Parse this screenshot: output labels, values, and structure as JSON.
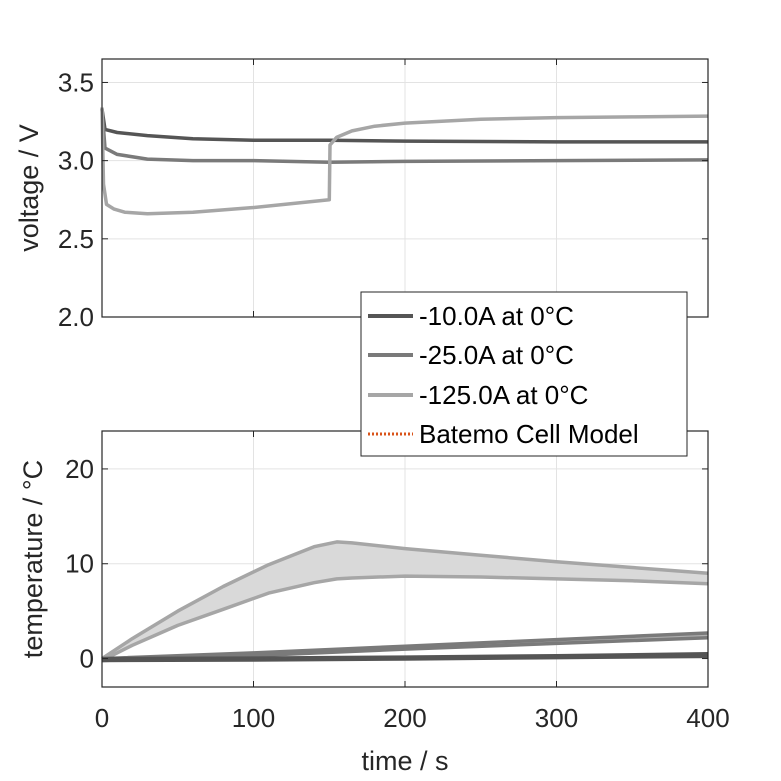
{
  "chart_data": [
    {
      "type": "line",
      "title": "",
      "xlabel": "",
      "ylabel": "voltage / V",
      "xlim": [
        0,
        400
      ],
      "ylim": [
        2.0,
        3.65
      ],
      "xticks": [
        0,
        100,
        200,
        300,
        400
      ],
      "yticks": [
        2.0,
        2.5,
        3.0,
        3.5
      ],
      "ytick_labels": [
        "2.0",
        "2.5",
        "3.0",
        "3.5"
      ],
      "grid": true,
      "legend_position": "bottom-right",
      "series": [
        {
          "name": "-10.0A at 0°C",
          "color": "#555555",
          "x": [
            0,
            2,
            10,
            30,
            60,
            100,
            150,
            200,
            300,
            400
          ],
          "y": [
            3.33,
            3.2,
            3.18,
            3.16,
            3.14,
            3.13,
            3.13,
            3.125,
            3.12,
            3.12
          ]
        },
        {
          "name": "-25.0A at 0°C",
          "color": "#7a7a7a",
          "x": [
            0,
            2,
            10,
            30,
            60,
            100,
            150,
            200,
            300,
            400
          ],
          "y": [
            3.33,
            3.08,
            3.04,
            3.01,
            3.0,
            3.0,
            2.99,
            2.995,
            3.0,
            3.005
          ]
        },
        {
          "name": "-125.0A at 0°C",
          "color": "#a6a6a6",
          "x": [
            0,
            1,
            3,
            8,
            15,
            30,
            60,
            100,
            150,
            150.5,
            155,
            165,
            180,
            200,
            250,
            300,
            350,
            400
          ],
          "y": [
            3.34,
            2.85,
            2.72,
            2.69,
            2.67,
            2.66,
            2.67,
            2.7,
            2.75,
            3.1,
            3.15,
            3.19,
            3.22,
            3.24,
            3.265,
            3.275,
            3.28,
            3.285
          ]
        },
        {
          "name": "Batemo Cell Model",
          "color": "#d95319",
          "dashed": true,
          "x": [],
          "y": []
        }
      ]
    },
    {
      "type": "area",
      "title": "",
      "xlabel": "time / s",
      "ylabel": "temperature / °C",
      "xlim": [
        0,
        400
      ],
      "ylim": [
        -3,
        24
      ],
      "xticks": [
        0,
        100,
        200,
        300,
        400
      ],
      "yticks": [
        0,
        10,
        20
      ],
      "xtick_labels": [
        "0",
        "100",
        "200",
        "300",
        "400"
      ],
      "ytick_labels": [
        "0",
        "10",
        "20"
      ],
      "grid": true,
      "series": [
        {
          "name": "-10.0A at 0°C",
          "color": "#555555",
          "x": [
            0,
            100,
            200,
            300,
            400
          ],
          "upper": [
            0,
            0.05,
            0.15,
            0.3,
            0.5
          ],
          "lower": [
            -0.2,
            -0.15,
            -0.05,
            0.1,
            0.25
          ]
        },
        {
          "name": "-25.0A at 0°C",
          "color": "#7a7a7a",
          "x": [
            0,
            100,
            200,
            300,
            400
          ],
          "upper": [
            0,
            0.6,
            1.3,
            2.0,
            2.7
          ],
          "lower": [
            -0.2,
            0.3,
            1.0,
            1.6,
            2.2
          ]
        },
        {
          "name": "-125.0A at 0°C",
          "color": "#a6a6a6",
          "x": [
            0,
            20,
            50,
            80,
            110,
            140,
            155,
            165,
            200,
            250,
            300,
            350,
            400
          ],
          "upper": [
            0,
            2.1,
            5.0,
            7.6,
            9.9,
            11.8,
            12.3,
            12.2,
            11.6,
            10.9,
            10.2,
            9.6,
            9.0
          ],
          "lower": [
            -0.2,
            1.4,
            3.5,
            5.2,
            6.9,
            8.0,
            8.4,
            8.5,
            8.7,
            8.6,
            8.4,
            8.2,
            7.9
          ]
        }
      ]
    }
  ]
}
